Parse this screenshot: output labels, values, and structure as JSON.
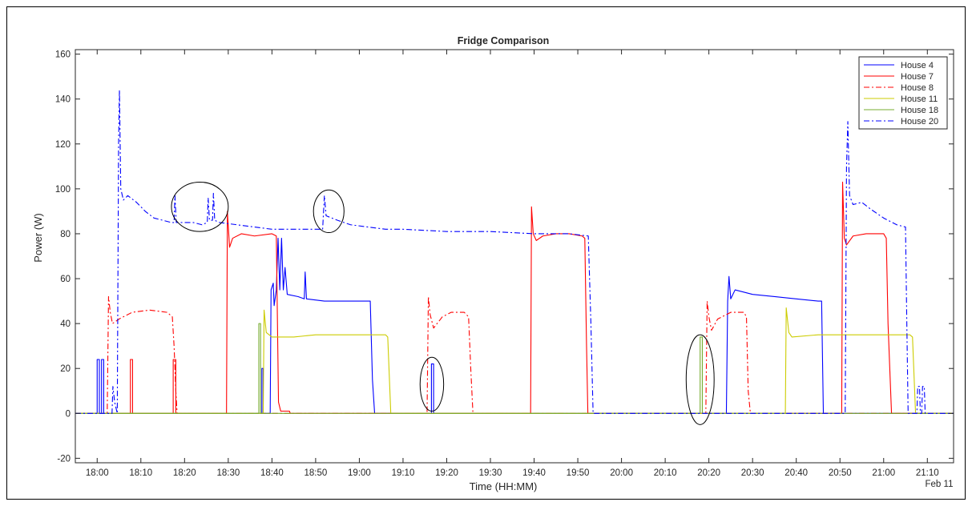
{
  "chart_data": {
    "type": "line",
    "title": "Fridge Comparison",
    "xlabel": "Time (HH:MM)",
    "ylabel": "Power (W)",
    "date_label": "Feb 11",
    "xlim": [
      "17:55",
      "21:16"
    ],
    "ylim": [
      -22,
      162
    ],
    "x_ticks": [
      "18:00",
      "18:10",
      "18:20",
      "18:30",
      "18:40",
      "18:50",
      "19:00",
      "19:10",
      "19:20",
      "19:30",
      "19:40",
      "19:50",
      "20:00",
      "20:10",
      "20:20",
      "20:30",
      "20:40",
      "20:50",
      "21:00",
      "21:10"
    ],
    "y_ticks": [
      -20,
      0,
      20,
      40,
      60,
      80,
      100,
      120,
      140,
      160
    ],
    "grid": false,
    "legend_position": "top-right",
    "series": [
      {
        "name": "House 4",
        "color": "#0000ff",
        "style": "solid",
        "points": [
          [
            "18:00",
            0
          ],
          [
            "18:00",
            24
          ],
          [
            "18:00.5",
            24
          ],
          [
            "18:00.5",
            0
          ],
          [
            "18:01",
            0
          ],
          [
            "18:01",
            24
          ],
          [
            "18:01.5",
            24
          ],
          [
            "18:01.5",
            0
          ],
          [
            "18:37.7",
            0
          ],
          [
            "18:37.7",
            20
          ],
          [
            "18:38",
            20
          ],
          [
            "18:38",
            0
          ],
          [
            "18:39.6",
            0
          ],
          [
            "18:39.8",
            55
          ],
          [
            "18:40.3",
            58
          ],
          [
            "18:40.5",
            48
          ],
          [
            "18:41",
            55
          ],
          [
            "18:41.4",
            78
          ],
          [
            "18:41.8",
            55
          ],
          [
            "18:42.2",
            78
          ],
          [
            "18:42.6",
            55
          ],
          [
            "18:43",
            65
          ],
          [
            "18:43.5",
            53
          ],
          [
            "18:46",
            52
          ],
          [
            "18:47.4",
            51
          ],
          [
            "18:47.6",
            63
          ],
          [
            "18:47.9",
            51
          ],
          [
            "18:52",
            50
          ],
          [
            "18:58",
            50
          ],
          [
            "19:02.5",
            50
          ],
          [
            "19:03",
            15
          ],
          [
            "19:03.5",
            0
          ],
          [
            "19:16.5",
            0
          ],
          [
            "19:16.5",
            22
          ],
          [
            "19:17",
            22
          ],
          [
            "19:17",
            0
          ],
          [
            "20:24",
            0
          ],
          [
            "20:24.3",
            50
          ],
          [
            "20:24.6",
            61
          ],
          [
            "20:25",
            51
          ],
          [
            "20:26",
            55
          ],
          [
            "20:30",
            53
          ],
          [
            "20:35",
            52
          ],
          [
            "20:40",
            51
          ],
          [
            "20:45",
            50
          ],
          [
            "20:45.8",
            50
          ],
          [
            "20:46.2",
            0
          ],
          [
            "21:16",
            0
          ]
        ]
      },
      {
        "name": "House 7",
        "color": "#ff0000",
        "style": "solid",
        "points": [
          [
            "17:55",
            0
          ],
          [
            "18:07.6",
            0
          ],
          [
            "18:07.6",
            24
          ],
          [
            "18:08.1",
            24
          ],
          [
            "18:08.1",
            0
          ],
          [
            "18:17.4",
            0
          ],
          [
            "18:17.4",
            24
          ],
          [
            "18:18",
            24
          ],
          [
            "18:18",
            0
          ],
          [
            "18:29.6",
            0
          ],
          [
            "18:29.8",
            90
          ],
          [
            "18:30.3",
            74
          ],
          [
            "18:31",
            78
          ],
          [
            "18:33",
            80
          ],
          [
            "18:36",
            79
          ],
          [
            "18:40",
            80
          ],
          [
            "18:41",
            79
          ],
          [
            "18:41.5",
            5
          ],
          [
            "18:42",
            1
          ],
          [
            "18:44",
            1
          ],
          [
            "18:44.2",
            0
          ],
          [
            "19:39.2",
            0
          ],
          [
            "19:39.4",
            92
          ],
          [
            "19:39.8",
            80
          ],
          [
            "19:40.5",
            77
          ],
          [
            "19:42",
            79
          ],
          [
            "19:45",
            80
          ],
          [
            "19:48",
            80
          ],
          [
            "19:51",
            79
          ],
          [
            "19:51.6",
            78
          ],
          [
            "19:52",
            30
          ],
          [
            "19:52.3",
            0
          ],
          [
            "20:50.4",
            0
          ],
          [
            "20:50.6",
            103
          ],
          [
            "20:51",
            78
          ],
          [
            "20:51.5",
            75
          ],
          [
            "20:53",
            79
          ],
          [
            "20:56",
            80
          ],
          [
            "21:00",
            80
          ],
          [
            "21:00.6",
            78
          ],
          [
            "21:01",
            40
          ],
          [
            "21:01.8",
            0
          ],
          [
            "21:16",
            0
          ]
        ]
      },
      {
        "name": "House 8",
        "color": "#ff0000",
        "style": "dashdot",
        "points": [
          [
            "17:55",
            0
          ],
          [
            "18:02.3",
            0
          ],
          [
            "18:02.6",
            52
          ],
          [
            "18:03",
            45
          ],
          [
            "18:03.5",
            40
          ],
          [
            "18:05",
            42
          ],
          [
            "18:08",
            45
          ],
          [
            "18:12",
            46
          ],
          [
            "18:16",
            45
          ],
          [
            "18:17.2",
            43
          ],
          [
            "18:17.6",
            30
          ],
          [
            "18:18",
            10
          ],
          [
            "18:18.3",
            0
          ],
          [
            "19:15.5",
            0
          ],
          [
            "19:15.8",
            52
          ],
          [
            "19:16.2",
            44
          ],
          [
            "19:17",
            38
          ],
          [
            "19:19",
            43
          ],
          [
            "19:21",
            45
          ],
          [
            "19:24",
            45
          ],
          [
            "19:25",
            43
          ],
          [
            "19:25.5",
            20
          ],
          [
            "19:26",
            0
          ],
          [
            "20:19.3",
            0
          ],
          [
            "20:19.6",
            50
          ],
          [
            "20:20",
            43
          ],
          [
            "20:20.6",
            37
          ],
          [
            "20:22",
            42
          ],
          [
            "20:25",
            45
          ],
          [
            "20:28",
            45
          ],
          [
            "20:28.6",
            43
          ],
          [
            "20:29",
            10
          ],
          [
            "20:29.5",
            0
          ],
          [
            "21:16",
            0
          ]
        ]
      },
      {
        "name": "House 11",
        "color": "#cccc00",
        "style": "solid",
        "points": [
          [
            "17:55",
            0
          ],
          [
            "18:38",
            0
          ],
          [
            "18:38.2",
            46
          ],
          [
            "18:38.7",
            36
          ],
          [
            "18:40",
            34
          ],
          [
            "18:45",
            34
          ],
          [
            "18:50",
            35
          ],
          [
            "18:55",
            35
          ],
          [
            "19:00",
            35
          ],
          [
            "19:06",
            35
          ],
          [
            "19:06.5",
            34
          ],
          [
            "19:07.2",
            0
          ],
          [
            "20:37.5",
            0
          ],
          [
            "20:37.7",
            47
          ],
          [
            "20:38.3",
            36
          ],
          [
            "20:39",
            34
          ],
          [
            "20:45",
            35
          ],
          [
            "20:55",
            35
          ],
          [
            "21:06",
            35
          ],
          [
            "21:06.6",
            34
          ],
          [
            "21:07.3",
            0
          ],
          [
            "21:16",
            0
          ]
        ]
      },
      {
        "name": "House 18",
        "color": "#77ac30",
        "style": "solid",
        "points": [
          [
            "17:55",
            0
          ],
          [
            "18:37",
            0
          ],
          [
            "18:37",
            40
          ],
          [
            "18:37.4",
            40
          ],
          [
            "18:37.4",
            0
          ],
          [
            "20:18",
            0
          ],
          [
            "20:18",
            34
          ],
          [
            "20:18.5",
            34
          ],
          [
            "20:18.5",
            0
          ],
          [
            "21:16",
            0
          ]
        ]
      },
      {
        "name": "House 20",
        "color": "#0000ff",
        "style": "dashdot",
        "points": [
          [
            "17:55",
            0
          ],
          [
            "18:03.4",
            0
          ],
          [
            "18:03.6",
            12
          ],
          [
            "18:04",
            5
          ],
          [
            "18:04.6",
            0
          ],
          [
            "18:04.9",
            120
          ],
          [
            "18:05.1",
            144
          ],
          [
            "18:05.4",
            100
          ],
          [
            "18:06",
            95
          ],
          [
            "18:07",
            97
          ],
          [
            "18:09",
            94
          ],
          [
            "18:11",
            90
          ],
          [
            "18:13",
            87
          ],
          [
            "18:15",
            86
          ],
          [
            "18:17",
            85
          ],
          [
            "18:17.6",
            85
          ],
          [
            "18:17.8",
            97
          ],
          [
            "18:18.1",
            85
          ],
          [
            "18:20",
            85
          ],
          [
            "18:22",
            85
          ],
          [
            "18:24",
            84
          ],
          [
            "18:25.2",
            85
          ],
          [
            "18:25.4",
            96
          ],
          [
            "18:25.7",
            86
          ],
          [
            "18:26.4",
            86
          ],
          [
            "18:26.6",
            98
          ],
          [
            "18:26.9",
            86
          ],
          [
            "18:28",
            85
          ],
          [
            "18:32",
            84
          ],
          [
            "18:36",
            83
          ],
          [
            "18:40",
            82
          ],
          [
            "18:44",
            82
          ],
          [
            "18:48",
            82
          ],
          [
            "18:51.6",
            82
          ],
          [
            "18:52",
            97
          ],
          [
            "18:52.4",
            88
          ],
          [
            "18:55",
            86
          ],
          [
            "18:58",
            84
          ],
          [
            "19:02",
            83
          ],
          [
            "19:06",
            82
          ],
          [
            "19:10",
            82
          ],
          [
            "19:20",
            81
          ],
          [
            "19:30",
            81
          ],
          [
            "19:40",
            80
          ],
          [
            "19:48",
            80
          ],
          [
            "19:52.4",
            79
          ],
          [
            "19:53",
            40
          ],
          [
            "19:53.5",
            0
          ],
          [
            "20:51.2",
            0
          ],
          [
            "20:51.5",
            110
          ],
          [
            "20:51.8",
            130
          ],
          [
            "20:52.2",
            97
          ],
          [
            "20:53",
            93
          ],
          [
            "20:55",
            94
          ],
          [
            "20:57",
            91
          ],
          [
            "21:00",
            87
          ],
          [
            "21:03",
            84
          ],
          [
            "21:05",
            83
          ],
          [
            "21:05.3",
            40
          ],
          [
            "21:05.6",
            0
          ],
          [
            "21:07.6",
            0
          ],
          [
            "21:07.8",
            12
          ],
          [
            "21:08.2",
            12
          ],
          [
            "21:08.4",
            0
          ],
          [
            "21:08.7",
            0
          ],
          [
            "21:08.9",
            12
          ],
          [
            "21:09.3",
            12
          ],
          [
            "21:09.5",
            0
          ],
          [
            "21:16",
            0
          ]
        ]
      }
    ],
    "annotations": [
      {
        "type": "ellipse",
        "center": [
          "18:23.5",
          92
        ],
        "rx_min": 6.5,
        "ry": 11
      },
      {
        "type": "ellipse",
        "center": [
          "18:53",
          90
        ],
        "rx_min": 3.5,
        "ry": 9.5
      },
      {
        "type": "ellipse",
        "center": [
          "19:16.6",
          13
        ],
        "rx_min": 2.7,
        "ry": 12
      },
      {
        "type": "ellipse",
        "center": [
          "20:18",
          15
        ],
        "rx_min": 3.2,
        "ry": 20
      }
    ]
  }
}
